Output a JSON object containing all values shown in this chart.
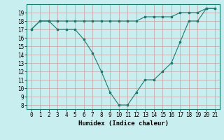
{
  "x": [
    0,
    1,
    2,
    3,
    4,
    5,
    6,
    7,
    8,
    9,
    10,
    11,
    12,
    13,
    14,
    15,
    16,
    17,
    18,
    19,
    20,
    21
  ],
  "line1": [
    17,
    18,
    18,
    18,
    18,
    18,
    18,
    18,
    18,
    18,
    18,
    18,
    18,
    18.5,
    18.5,
    18.5,
    18.5,
    19,
    19,
    19,
    19.5,
    19.5
  ],
  "line2": [
    17,
    18,
    18,
    17,
    17,
    17,
    15.8,
    14.2,
    12,
    9.5,
    8,
    8,
    9.5,
    11,
    11,
    12,
    13,
    15.5,
    18,
    18,
    19.5,
    19.5
  ],
  "color": "#1a7a6e",
  "bg_color": "#c8eef0",
  "grid_color_major": "#c8a0a0",
  "grid_color_minor": "#e0c0c0",
  "xlabel": "Humidex (Indice chaleur)",
  "ylim": [
    7.5,
    20
  ],
  "xlim": [
    -0.5,
    21.5
  ],
  "yticks": [
    8,
    9,
    10,
    11,
    12,
    13,
    14,
    15,
    16,
    17,
    18,
    19
  ],
  "xticks": [
    0,
    1,
    2,
    3,
    4,
    5,
    6,
    7,
    8,
    9,
    10,
    11,
    12,
    13,
    14,
    15,
    16,
    17,
    18,
    19,
    20,
    21
  ],
  "xlabel_fontsize": 6.5,
  "tick_fontsize": 5.5
}
